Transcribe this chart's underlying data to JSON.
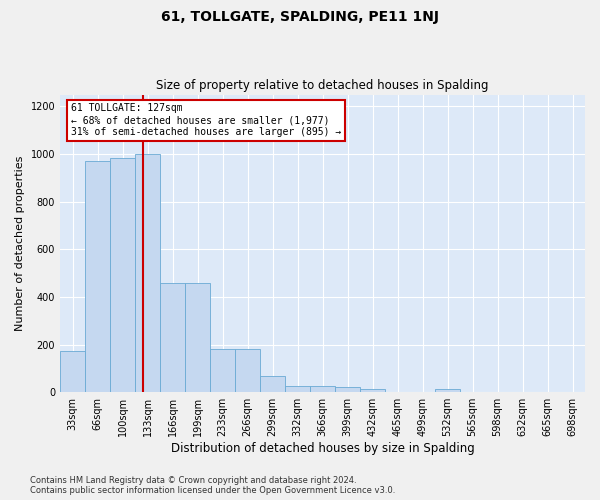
{
  "title": "61, TOLLGATE, SPALDING, PE11 1NJ",
  "subtitle": "Size of property relative to detached houses in Spalding",
  "xlabel": "Distribution of detached houses by size in Spalding",
  "ylabel": "Number of detached properties",
  "footnote": "Contains HM Land Registry data © Crown copyright and database right 2024.\nContains public sector information licensed under the Open Government Licence v3.0.",
  "categories": [
    "33sqm",
    "66sqm",
    "100sqm",
    "133sqm",
    "166sqm",
    "199sqm",
    "233sqm",
    "266sqm",
    "299sqm",
    "332sqm",
    "366sqm",
    "399sqm",
    "432sqm",
    "465sqm",
    "499sqm",
    "532sqm",
    "565sqm",
    "598sqm",
    "632sqm",
    "665sqm",
    "698sqm"
  ],
  "values": [
    175,
    970,
    985,
    1000,
    460,
    460,
    183,
    183,
    70,
    28,
    25,
    20,
    12,
    0,
    0,
    15,
    0,
    0,
    0,
    0,
    0
  ],
  "bar_color": "#c5d8f0",
  "bar_edge_color": "#6aaad4",
  "background_color": "#dde9f8",
  "grid_color": "#ffffff",
  "property_line_label": "61 TOLLGATE: 127sqm",
  "annotation_line1": "← 68% of detached houses are smaller (1,977)",
  "annotation_line2": "31% of semi-detached houses are larger (895) →",
  "annotation_box_color": "#ffffff",
  "annotation_box_edge": "#cc0000",
  "red_line_color": "#cc0000",
  "ylim": [
    0,
    1250
  ],
  "yticks": [
    0,
    200,
    400,
    600,
    800,
    1000,
    1200
  ],
  "fig_bg": "#f0f0f0",
  "title_fontsize": 10,
  "subtitle_fontsize": 8.5,
  "ylabel_fontsize": 8,
  "xlabel_fontsize": 8.5,
  "footnote_fontsize": 6,
  "tick_fontsize": 7
}
